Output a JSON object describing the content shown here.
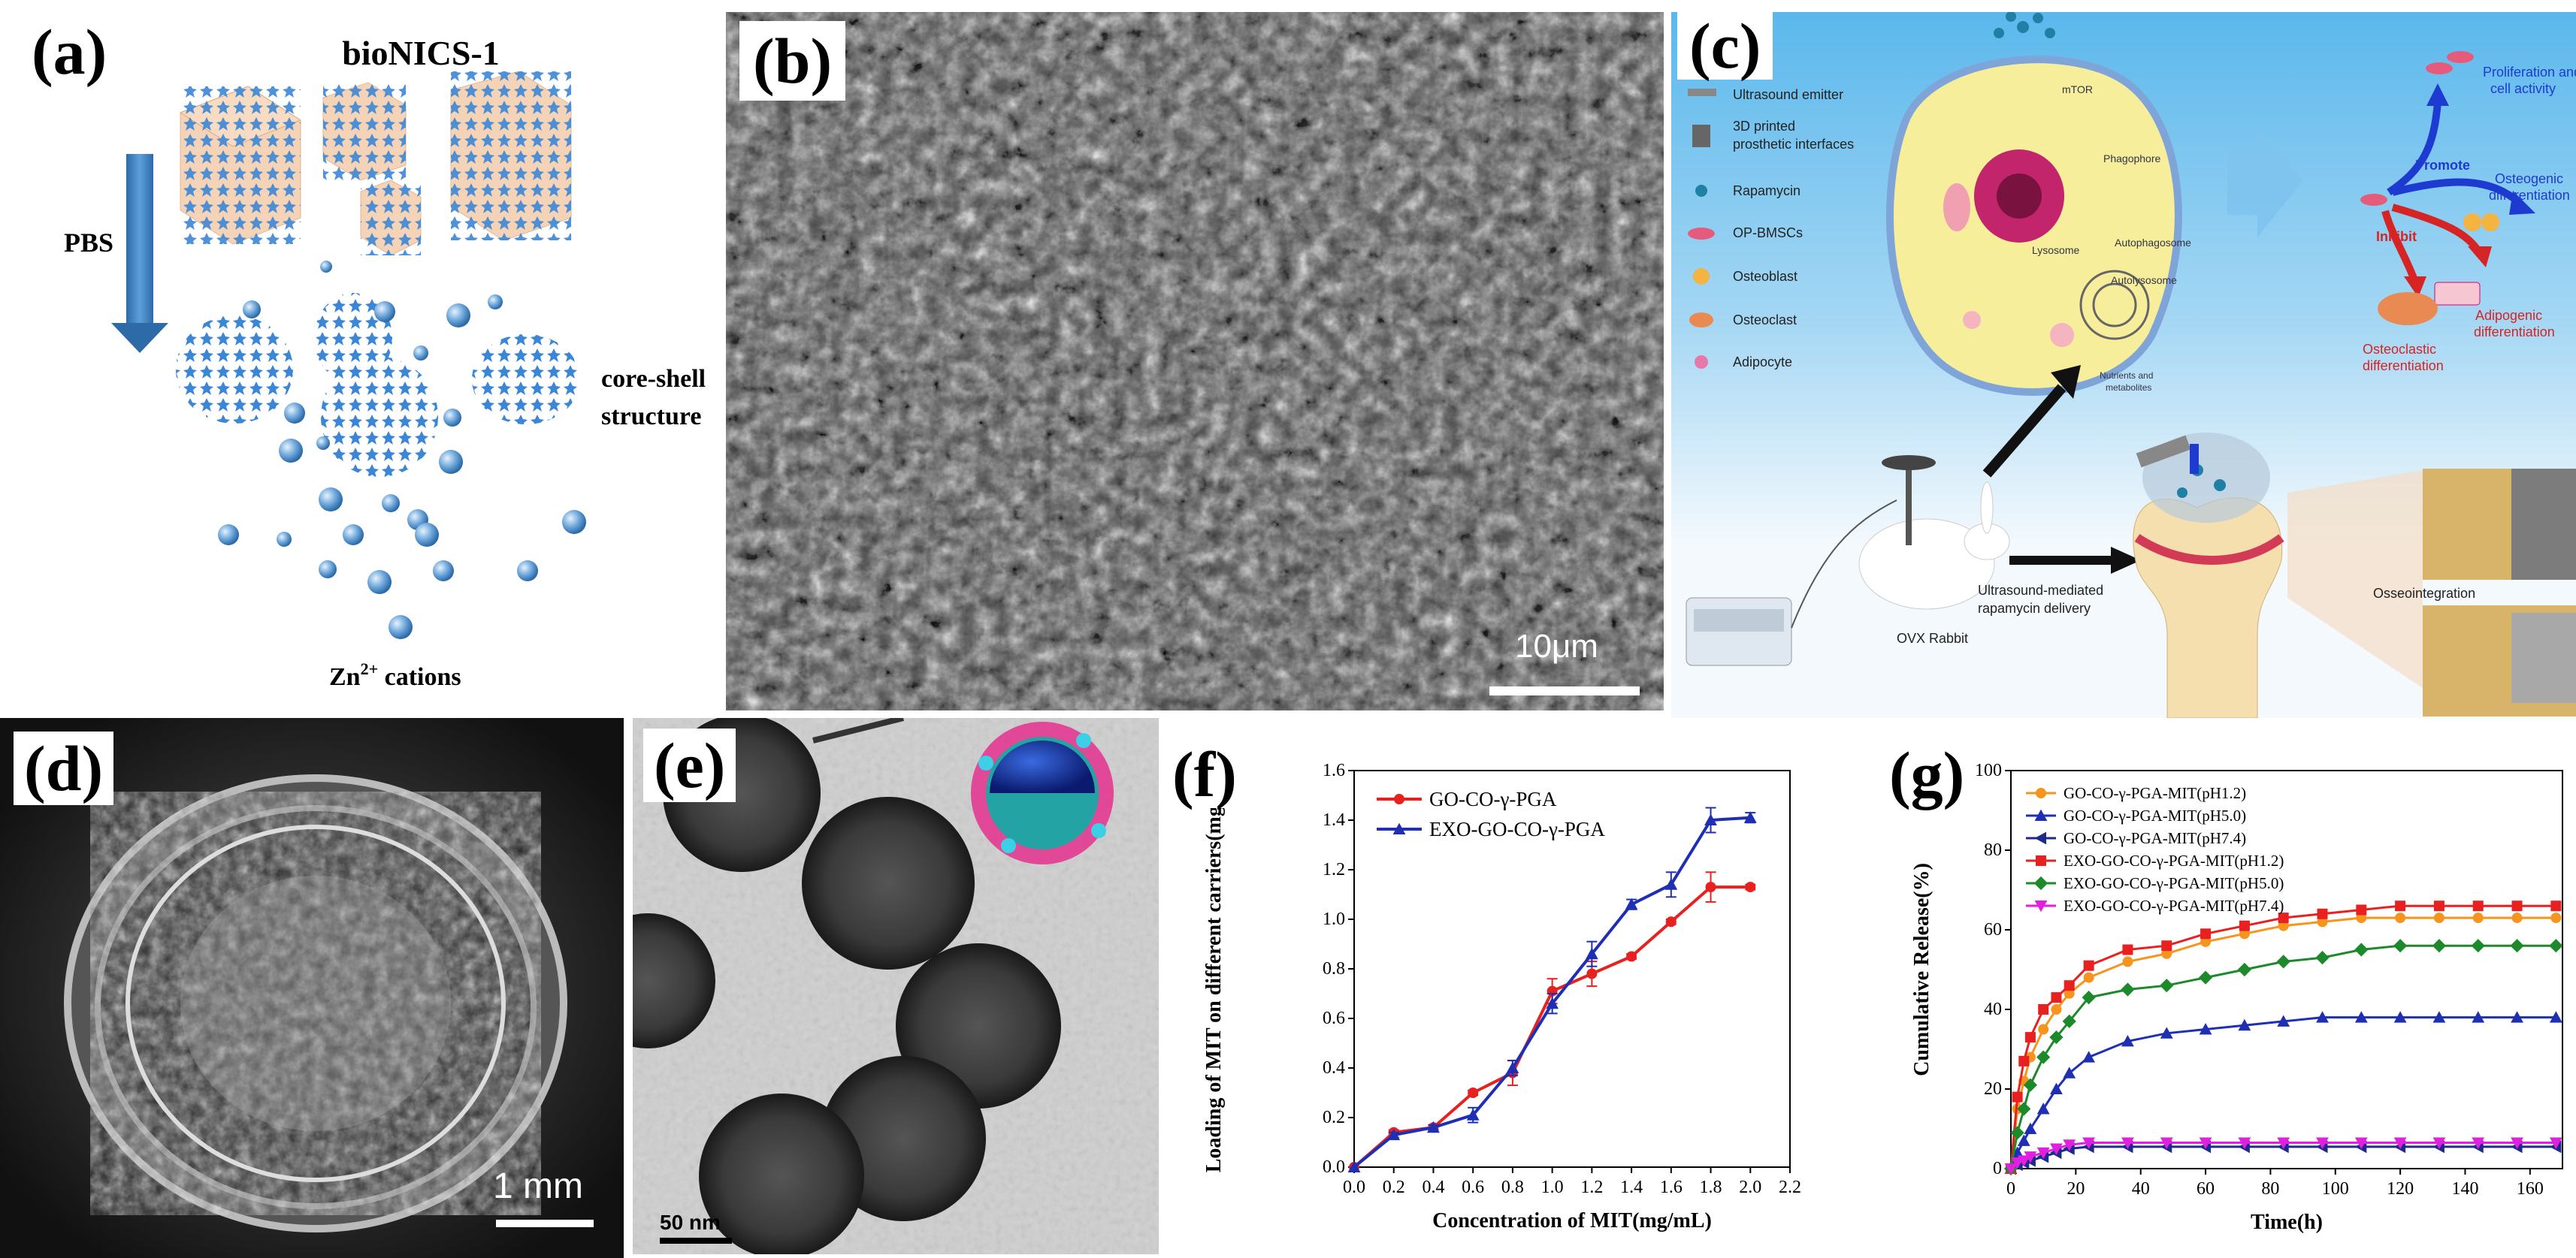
{
  "panel_a": {
    "label": "(a)",
    "title": "bioNICS-1",
    "arrow_label": "PBS",
    "structure_label_1": "core-shell",
    "structure_label_2": "structure",
    "cations_label": "Zn",
    "cations_sup": "2+",
    "cations_suffix": " cations",
    "colors": {
      "cube": "#f3c9a6",
      "cluster": "#3b86d6",
      "sphere": "#6fa8dc",
      "arrow": "#3d7fc1"
    }
  },
  "panel_b": {
    "label": "(b)",
    "scale_bar": "10μm"
  },
  "panel_c": {
    "label": "(c)",
    "legend": [
      "Ultrasound emitter",
      "3D printed",
      "prosthetic interfaces",
      "Rapamycin",
      "OP-BMSCs",
      "Osteoblast",
      "Osteoclast",
      "Adipocyte"
    ],
    "cell_labels": [
      "mTOR",
      "Phagophore",
      "Lysosome",
      "Autophagosome",
      "Autolysosome",
      "Nutrients and",
      "metabolites"
    ],
    "promote": "Promote",
    "inhibit": "Inhibit",
    "outcomes": [
      "Proliferation and",
      "cell activity",
      "Osteogenic",
      "differentiation",
      "Adipogenic",
      "differentiation",
      "Osteoclastic",
      "differentiation"
    ],
    "rabbit": "OVX Rabbit",
    "delivery_1": "Ultrasound-mediated",
    "delivery_2": "rapamycin delivery",
    "osseo": "Osseointegration",
    "colors": {
      "bg_top": "#5bb8ec",
      "bg_bottom": "#f3f9fd",
      "cell": "#f6ee9a",
      "promote": "#1d3bd1",
      "inhibit": "#d62424"
    }
  },
  "panel_d": {
    "label": "(d)",
    "scale_bar": "1 mm"
  },
  "panel_e": {
    "label": "(e)",
    "scale_bar": "50 nm"
  },
  "panel_f": {
    "label": "(f)"
  },
  "panel_g": {
    "label": "(g)"
  },
  "chart_data": [
    {
      "type": "line",
      "xlabel": "Concentration of MIT(mg/mL)",
      "ylabel": "Loading of MIT on different carriers(mg/mg)",
      "xlim": [
        0.0,
        2.2
      ],
      "ylim": [
        0.0,
        1.6
      ],
      "xticks": [
        "0.0",
        "0.2",
        "0.4",
        "0.6",
        "0.8",
        "1.0",
        "1.2",
        "1.4",
        "1.6",
        "1.8",
        "2.0",
        "2.2"
      ],
      "yticks": [
        "0.0",
        "0.2",
        "0.4",
        "0.6",
        "0.8",
        "1.0",
        "1.2",
        "1.4",
        "1.6"
      ],
      "legend_position": "top-left",
      "series": [
        {
          "name": "GO-CO-γ-PGA",
          "color": "#e8201f",
          "marker": "circle",
          "x": [
            0.0,
            0.2,
            0.4,
            0.6,
            0.8,
            1.0,
            1.2,
            1.4,
            1.6,
            1.8,
            2.0
          ],
          "y": [
            0.0,
            0.14,
            0.16,
            0.3,
            0.38,
            0.71,
            0.78,
            0.85,
            0.99,
            1.13,
            1.13
          ],
          "err": [
            0,
            0.01,
            0.01,
            0.01,
            0.05,
            0.05,
            0.05,
            0.01,
            0.01,
            0.06,
            0.01
          ]
        },
        {
          "name": "EXO-GO-CO-γ-PGA",
          "color": "#1f2fb3",
          "marker": "triangle",
          "x": [
            0.0,
            0.2,
            0.4,
            0.6,
            0.8,
            1.0,
            1.2,
            1.4,
            1.6,
            1.8,
            2.0
          ],
          "y": [
            0.0,
            0.13,
            0.16,
            0.21,
            0.4,
            0.66,
            0.86,
            1.06,
            1.14,
            1.4,
            1.41
          ],
          "err": [
            0,
            0.01,
            0.01,
            0.03,
            0.03,
            0.04,
            0.05,
            0.02,
            0.05,
            0.05,
            0.02
          ]
        }
      ]
    },
    {
      "type": "line",
      "xlabel": "Time(h)",
      "ylabel": "Cumulative Release(%)",
      "xlim": [
        0,
        170
      ],
      "ylim": [
        0,
        100
      ],
      "xticks": [
        "0",
        "20",
        "40",
        "60",
        "80",
        "100",
        "120",
        "140",
        "160"
      ],
      "yticks": [
        "0",
        "20",
        "40",
        "60",
        "80",
        "100"
      ],
      "legend_position": "top-left",
      "x": [
        0,
        2,
        4,
        6,
        10,
        14,
        18,
        24,
        36,
        48,
        60,
        72,
        84,
        96,
        108,
        120,
        132,
        144,
        156,
        168
      ],
      "series": [
        {
          "name": "GO-CO-γ-PGA-MIT(pH1.2)",
          "color": "#f7941d",
          "marker": "circle",
          "values": [
            0,
            15,
            22,
            28,
            35,
            40,
            44,
            48,
            52,
            54,
            57,
            59,
            61,
            62,
            63,
            63,
            63,
            63,
            63,
            63
          ]
        },
        {
          "name": "GO-CO-γ-PGA-MIT(pH5.0)",
          "color": "#1f2fb3",
          "marker": "triangle",
          "values": [
            0,
            4,
            7,
            10,
            15,
            20,
            24,
            28,
            32,
            34,
            35,
            36,
            37,
            38,
            38,
            38,
            38,
            38,
            38,
            38
          ]
        },
        {
          "name": "GO-CO-γ-PGA-MIT(pH7.4)",
          "color": "#1d2a8c",
          "marker": "triangle-left",
          "values": [
            0,
            1,
            1.5,
            2,
            3,
            4,
            5,
            5.5,
            5.5,
            5.5,
            5.5,
            5.5,
            5.5,
            5.5,
            5.5,
            5.5,
            5.5,
            5.5,
            5.5,
            5.5
          ]
        },
        {
          "name": "EXO-GO-CO-γ-PGA-MIT(pH1.2)",
          "color": "#e8201f",
          "marker": "square",
          "values": [
            0,
            18,
            27,
            33,
            40,
            43,
            46,
            51,
            55,
            56,
            59,
            61,
            63,
            64,
            65,
            66,
            66,
            66,
            66,
            66
          ]
        },
        {
          "name": "EXO-GO-CO-γ-PGA-MIT(pH5.0)",
          "color": "#1c8a2a",
          "marker": "diamond",
          "values": [
            0,
            9,
            15,
            21,
            28,
            33,
            37,
            43,
            45,
            46,
            48,
            50,
            52,
            53,
            55,
            56,
            56,
            56,
            56,
            56
          ]
        },
        {
          "name": "EXO-GO-CO-γ-PGA-MIT(pH7.4)",
          "color": "#e21fe0",
          "marker": "triangle-down",
          "values": [
            0,
            1.5,
            2,
            3,
            4,
            5,
            6,
            6.5,
            6.5,
            6.5,
            6.5,
            6.5,
            6.5,
            6.5,
            6.5,
            6.5,
            6.5,
            6.5,
            6.5,
            6.5
          ]
        }
      ]
    }
  ]
}
